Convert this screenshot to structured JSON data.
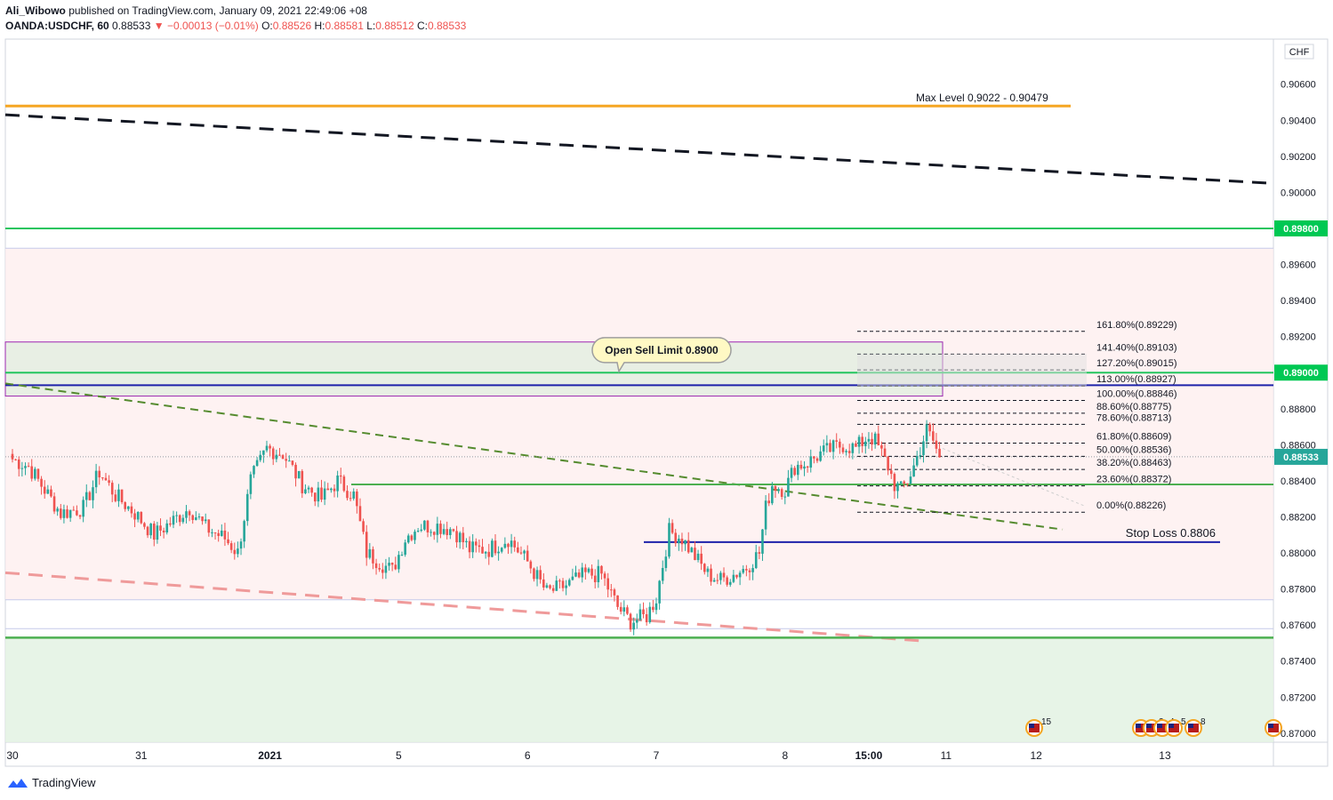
{
  "header": {
    "author": "Ali_Wibowo",
    "published_text": "published on TradingView.com, January 09, 2021 22:49:06 +08",
    "symbol": "OANDA:USDCHF, 60",
    "last": "0.88533",
    "change": "▼ −0.00013 (−0.01%)",
    "o_label": "O:",
    "o_value": "0.88526",
    "h_label": "H:",
    "h_value": "0.88581",
    "l_label": "L:",
    "l_value": "0.88512",
    "c_label": "C:",
    "c_value": "0.88533"
  },
  "footer": {
    "brand": "TradingView"
  },
  "colors": {
    "up": "#26a69a",
    "down": "#ef5350",
    "orange": "#f5a623",
    "green": "#22c55e",
    "blue": "#1e22aa",
    "purple": "#9c27b0"
  },
  "chart_data": {
    "type": "candlestick",
    "currency": "CHF",
    "ylim": [
      0.8695,
      0.9085
    ],
    "y_ticks": [
      "0.90600",
      "0.90400",
      "0.90200",
      "0.90000",
      "0.89600",
      "0.89400",
      "0.89200",
      "0.88800",
      "0.88600",
      "0.88400",
      "0.88200",
      "0.88000",
      "0.87800",
      "0.87600",
      "0.87400",
      "0.87200",
      "0.87000"
    ],
    "y_tick_values": [
      0.906,
      0.904,
      0.902,
      0.9,
      0.896,
      0.894,
      0.892,
      0.888,
      0.886,
      0.884,
      0.882,
      0.88,
      0.878,
      0.876,
      0.874,
      0.872,
      0.87
    ],
    "x_ticks": [
      "30",
      "31",
      "2021",
      "5",
      "6",
      "7",
      "8",
      "15:00",
      "11",
      "12",
      "13"
    ],
    "x_tick_bars": [
      0,
      40,
      80,
      120,
      160,
      200,
      240,
      266,
      290,
      318,
      358
    ],
    "current_price": "0.88533",
    "levels": [
      {
        "price": 0.898,
        "label": "0.89800"
      },
      {
        "price": 0.89,
        "label": "0.89000"
      }
    ],
    "annotations": {
      "max_level": "Max Level 0,9022 - 0.90479",
      "sell_limit": "Open Sell Limit 0.8900",
      "stop_loss": "Stop Loss 0.8806"
    },
    "fib_levels": [
      {
        "label": "161.80%(0.89229)",
        "price": 0.89229
      },
      {
        "label": "141.40%(0.89103)",
        "price": 0.89103
      },
      {
        "label": "127.20%(0.89015)",
        "price": 0.89015
      },
      {
        "label": "113.00%(0.88927)",
        "price": 0.88927
      },
      {
        "label": "100.00%(0.88846)",
        "price": 0.88846
      },
      {
        "label": "88.60%(0.88775)",
        "price": 0.88775
      },
      {
        "label": "78.60%(0.88713)",
        "price": 0.88713
      },
      {
        "label": "61.80%(0.88609)",
        "price": 0.88609
      },
      {
        "label": "50.00%(0.88536)",
        "price": 0.88536
      },
      {
        "label": "38.20%(0.88463)",
        "price": 0.88463
      },
      {
        "label": "23.60%(0.88372)",
        "price": 0.88372
      },
      {
        "label": "0.00%(0.88226)",
        "price": 0.88226
      }
    ],
    "event_labels": [
      "15",
      "2",
      "4",
      "5",
      "8"
    ],
    "close_path": [
      [
        0,
        0.8852
      ],
      [
        5,
        0.8848
      ],
      [
        10,
        0.8835
      ],
      [
        15,
        0.8822
      ],
      [
        22,
        0.8825
      ],
      [
        27,
        0.8845
      ],
      [
        32,
        0.8832
      ],
      [
        38,
        0.8822
      ],
      [
        44,
        0.881
      ],
      [
        50,
        0.8818
      ],
      [
        55,
        0.8825
      ],
      [
        60,
        0.8814
      ],
      [
        66,
        0.8808
      ],
      [
        70,
        0.88
      ],
      [
        74,
        0.884
      ],
      [
        79,
        0.8858
      ],
      [
        84,
        0.8855
      ],
      [
        90,
        0.8838
      ],
      [
        96,
        0.883
      ],
      [
        101,
        0.884
      ],
      [
        106,
        0.8832
      ],
      [
        110,
        0.88
      ],
      [
        114,
        0.8795
      ],
      [
        118,
        0.879
      ],
      [
        122,
        0.8808
      ],
      [
        126,
        0.8815
      ],
      [
        132,
        0.8815
      ],
      [
        137,
        0.8813
      ],
      [
        142,
        0.8802
      ],
      [
        148,
        0.8802
      ],
      [
        154,
        0.8808
      ],
      [
        160,
        0.8795
      ],
      [
        166,
        0.8778
      ],
      [
        172,
        0.8782
      ],
      [
        178,
        0.8788
      ],
      [
        183,
        0.8788
      ],
      [
        188,
        0.877
      ],
      [
        192,
        0.8762
      ],
      [
        197,
        0.8765
      ],
      [
        200,
        0.8775
      ],
      [
        204,
        0.8812
      ],
      [
        208,
        0.8808
      ],
      [
        212,
        0.8798
      ],
      [
        216,
        0.8788
      ],
      [
        220,
        0.8785
      ],
      [
        224,
        0.8788
      ],
      [
        228,
        0.8792
      ],
      [
        232,
        0.88
      ],
      [
        234,
        0.8825
      ],
      [
        236,
        0.8838
      ],
      [
        240,
        0.8835
      ],
      [
        243,
        0.8848
      ],
      [
        247,
        0.885
      ],
      [
        251,
        0.8855
      ],
      [
        255,
        0.8858
      ],
      [
        258,
        0.886
      ],
      [
        262,
        0.8858
      ],
      [
        266,
        0.8865
      ],
      [
        268,
        0.8862
      ],
      [
        270,
        0.8855
      ],
      [
        272,
        0.8848
      ],
      [
        274,
        0.8838
      ],
      [
        276,
        0.8835
      ],
      [
        278,
        0.884
      ],
      [
        280,
        0.8848
      ],
      [
        282,
        0.8858
      ],
      [
        284,
        0.8868
      ],
      [
        286,
        0.8862
      ],
      [
        288,
        0.8853
      ]
    ]
  }
}
